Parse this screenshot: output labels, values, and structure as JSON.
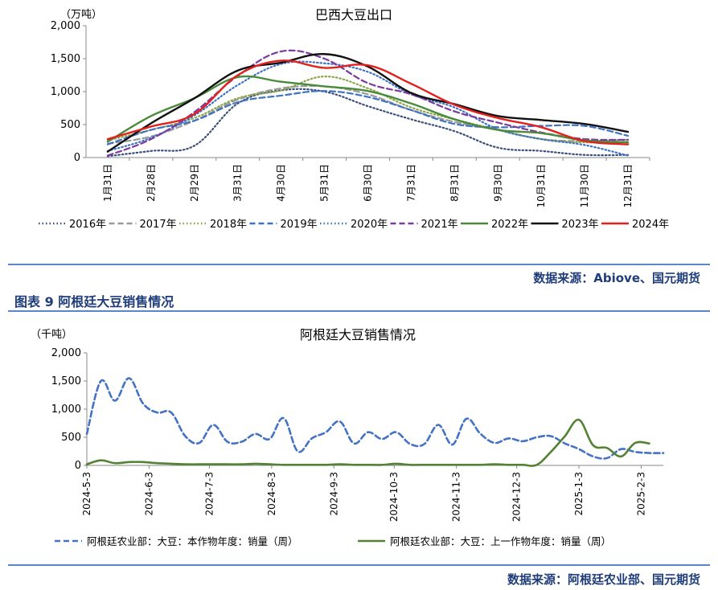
{
  "chart_data": [
    {
      "type": "line",
      "title": "巴西大豆出口",
      "unit": "（万吨）",
      "categories": [
        "1月31日",
        "2月28日",
        "2月29日",
        "3月31日",
        "4月30日",
        "5月31日",
        "6月30日",
        "7月31日",
        "8月31日",
        "9月30日",
        "10月31日",
        "11月30日",
        "12月31日"
      ],
      "ylim": [
        0,
        2000
      ],
      "yticks": [
        0,
        500,
        1000,
        1500,
        2000
      ],
      "ytick_labels": [
        "0",
        "500",
        "1,000",
        "1,500",
        "2,000"
      ],
      "grid": false,
      "legend_position": "bottom",
      "series": [
        {
          "name": "2016年",
          "color": "#3a4f7a",
          "style": "dot",
          "values": [
            20,
            100,
            180,
            820,
            1020,
            1000,
            780,
            580,
            400,
            150,
            100,
            40,
            40
          ]
        },
        {
          "name": "2017年",
          "color": "#9a9a9a",
          "style": "dash",
          "values": [
            210,
            320,
            560,
            880,
            1050,
            1080,
            960,
            720,
            540,
            420,
            280,
            250,
            270
          ]
        },
        {
          "name": "2018年",
          "color": "#8da64b",
          "style": "dot",
          "values": [
            260,
            420,
            600,
            900,
            1020,
            1230,
            1050,
            760,
            580,
            420,
            280,
            230,
            240
          ]
        },
        {
          "name": "2019年",
          "color": "#3e73c4",
          "style": "dash",
          "values": [
            200,
            420,
            560,
            840,
            940,
            1010,
            920,
            720,
            510,
            460,
            480,
            480,
            330
          ]
        },
        {
          "name": "2020年",
          "color": "#3e73c4",
          "style": "dot",
          "values": [
            100,
            300,
            640,
            1100,
            1420,
            1430,
            1300,
            960,
            760,
            430,
            280,
            190,
            30
          ]
        },
        {
          "name": "2021年",
          "color": "#7b3a9e",
          "style": "dash",
          "values": [
            30,
            280,
            690,
            1240,
            1610,
            1500,
            1130,
            960,
            700,
            530,
            380,
            280,
            270
          ]
        },
        {
          "name": "2022年",
          "color": "#4a8a3a",
          "style": "solid",
          "values": [
            240,
            630,
            900,
            1220,
            1150,
            1080,
            1010,
            820,
            580,
            420,
            370,
            260,
            230
          ]
        },
        {
          "name": "2023年",
          "color": "#111111",
          "style": "solid",
          "values": [
            90,
            520,
            900,
            1320,
            1440,
            1570,
            1380,
            980,
            810,
            630,
            570,
            510,
            390
          ]
        },
        {
          "name": "2024年",
          "color": "#e3201b",
          "style": "solid",
          "values": [
            280,
            470,
            660,
            1250,
            1470,
            1360,
            1400,
            1120,
            800,
            600,
            460,
            250,
            200
          ]
        }
      ]
    },
    {
      "type": "line",
      "title": "阿根廷大豆销售情况",
      "unit": "（千吨）",
      "x_start": "2024-05-03",
      "x_step_days": 7,
      "xtick_labels": [
        "2024-5-3",
        "2024-6-3",
        "2024-7-3",
        "2024-8-3",
        "2024-9-3",
        "2024-10-3",
        "2024-11-3",
        "2024-12-3",
        "2025-1-3",
        "2025-2-3"
      ],
      "xtick_dates": [
        "2024-05-03",
        "2024-06-03",
        "2024-07-03",
        "2024-08-03",
        "2024-09-03",
        "2024-10-03",
        "2024-11-03",
        "2024-12-03",
        "2025-01-03",
        "2025-02-03"
      ],
      "ylim": [
        0,
        2000
      ],
      "yticks": [
        0,
        500,
        1000,
        1500,
        2000
      ],
      "ytick_labels": [
        "0",
        "500",
        "1,000",
        "1,500",
        "2,000"
      ],
      "grid": false,
      "legend_position": "bottom",
      "series": [
        {
          "name": "阿根廷农业部：大豆：本作物年度：销量（周）",
          "color": "#4472c4",
          "style": "dash",
          "values": [
            560,
            1500,
            1150,
            1550,
            1100,
            940,
            940,
            520,
            400,
            720,
            420,
            420,
            560,
            470,
            840,
            250,
            480,
            590,
            780,
            390,
            590,
            470,
            590,
            380,
            380,
            720,
            370,
            830,
            560,
            400,
            480,
            430,
            500,
            520,
            390,
            290,
            160,
            130,
            290,
            240,
            220,
            220
          ]
        },
        {
          "name": "阿根廷农业部：大豆：上一作物年度：销量（周）",
          "color": "#548235",
          "style": "solid",
          "values": [
            20,
            90,
            40,
            60,
            60,
            40,
            30,
            20,
            20,
            20,
            20,
            20,
            30,
            20,
            10,
            10,
            10,
            10,
            20,
            10,
            10,
            10,
            30,
            10,
            10,
            10,
            10,
            10,
            10,
            20,
            10,
            10,
            10,
            240,
            520,
            810,
            360,
            310,
            160,
            400,
            390
          ]
        }
      ]
    }
  ],
  "sources": {
    "top": "数据来源：Abiove、国元期货",
    "bottom": "数据来源：阿根廷农业部、国元期货"
  },
  "figure_title": "图表 9 阿根廷大豆销售情况",
  "colors": {
    "rule": "#5b86c5",
    "heading": "#1f3d7a"
  }
}
